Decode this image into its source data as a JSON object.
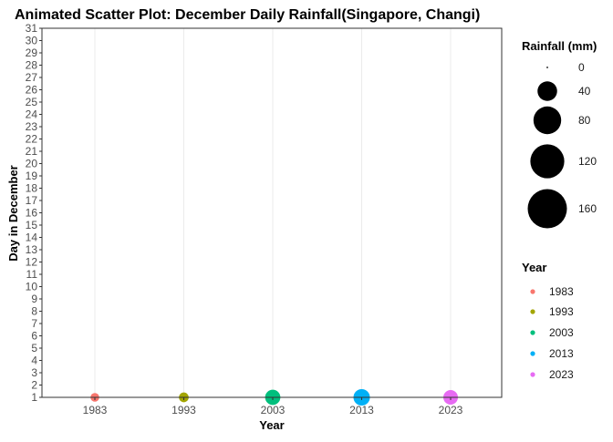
{
  "chart_data": {
    "type": "scatter",
    "title": "Animated Scatter Plot: December Daily Rainfall(Singapore, Changi)",
    "xlabel": "Year",
    "ylabel": "Day in December",
    "x_categories": [
      "1983",
      "1993",
      "2003",
      "2013",
      "2023"
    ],
    "y_ticks": [
      "1",
      "2",
      "3",
      "4",
      "5",
      "6",
      "7",
      "8",
      "9",
      "10",
      "11",
      "12",
      "13",
      "14",
      "15",
      "16",
      "17",
      "18",
      "19",
      "20",
      "21",
      "22",
      "23",
      "24",
      "25",
      "26",
      "27",
      "28",
      "29",
      "30",
      "31"
    ],
    "ylim": [
      1,
      31
    ],
    "grid": "vertical major only",
    "points": [
      {
        "year": "1983",
        "day": 1,
        "rainfall_mm": 1,
        "color": "#F8766D"
      },
      {
        "year": "1993",
        "day": 1,
        "rainfall_mm": 2,
        "color": "#A3A500"
      },
      {
        "year": "2003",
        "day": 1,
        "rainfall_mm": 14,
        "color": "#00BF7D"
      },
      {
        "year": "2013",
        "day": 1,
        "rainfall_mm": 18,
        "color": "#00B0F6"
      },
      {
        "year": "2023",
        "day": 1,
        "rainfall_mm": 12,
        "color": "#E76BF3"
      }
    ],
    "size_legend": {
      "title": "Rainfall (mm)",
      "breaks": [
        0,
        40,
        80,
        120,
        160
      ],
      "labels": [
        "0",
        "40",
        "80",
        "120",
        "160"
      ]
    },
    "color_legend": {
      "title": "Year",
      "entries": [
        {
          "label": "1983",
          "color": "#F8766D"
        },
        {
          "label": "1993",
          "color": "#A3A500"
        },
        {
          "label": "2003",
          "color": "#00BF7D"
        },
        {
          "label": "2013",
          "color": "#00B0F6"
        },
        {
          "label": "2023",
          "color": "#E76BF3"
        }
      ]
    },
    "legend_position": "right"
  }
}
